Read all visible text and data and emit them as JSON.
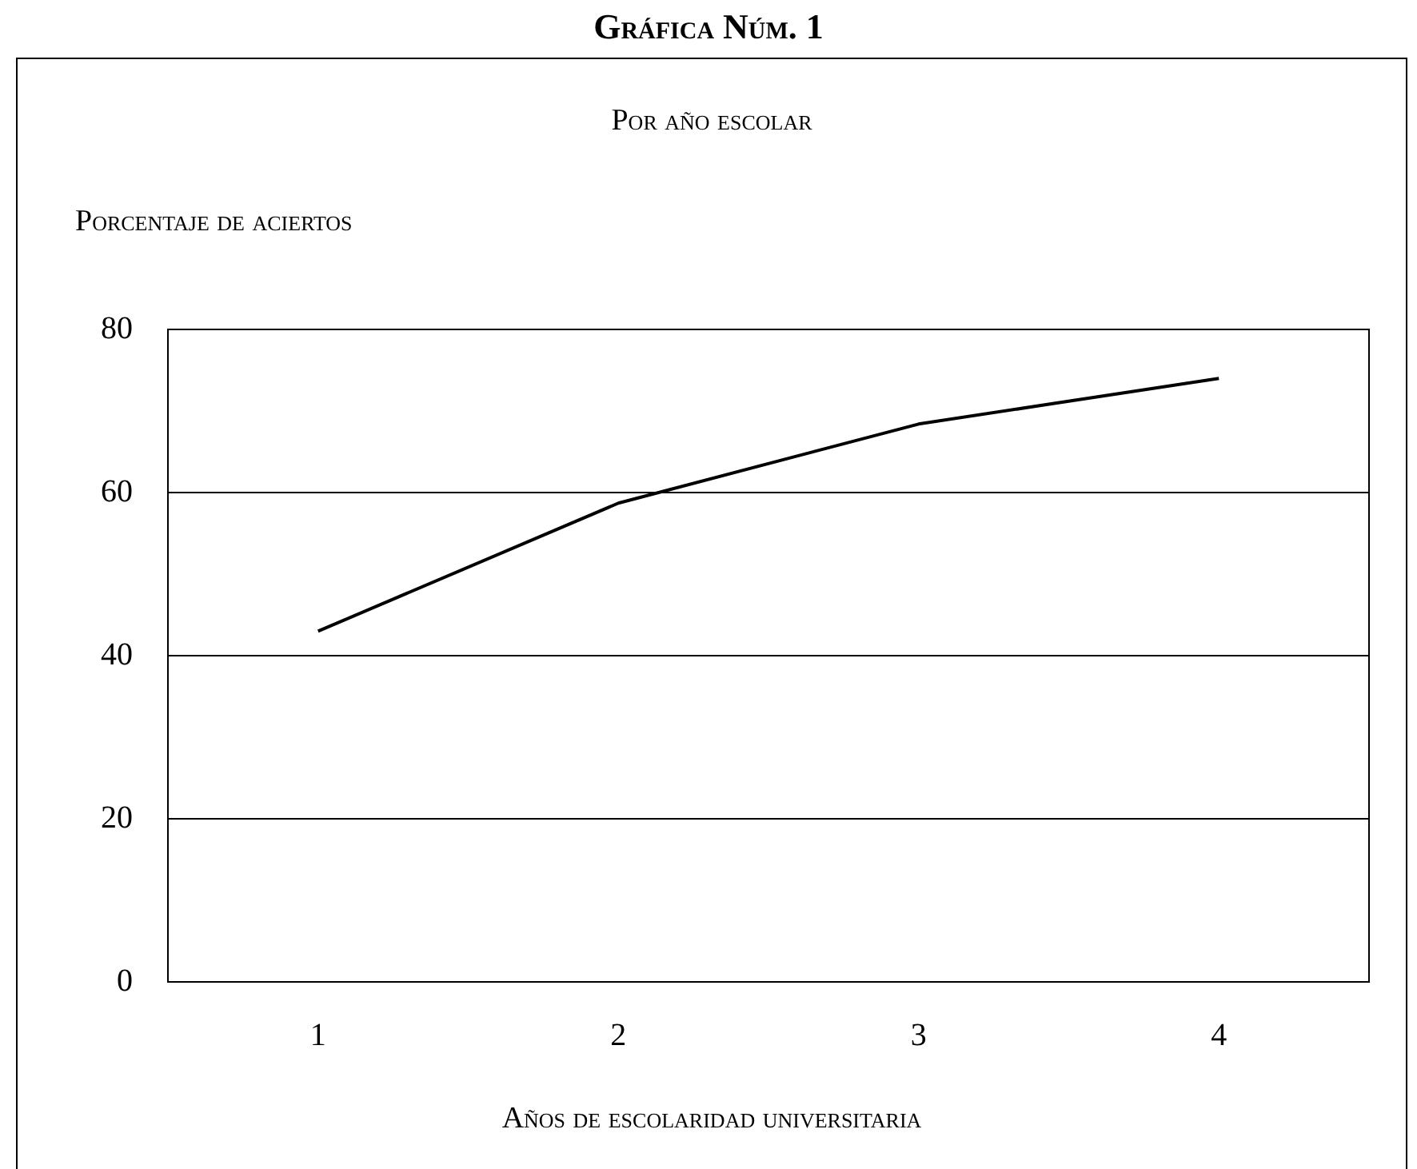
{
  "chart_data": {
    "type": "line",
    "title": "Gráfica Núm. 1",
    "subtitle": "Por año escolar",
    "ylabel": "Porcentaje de aciertos",
    "xlabel": "Años de escolaridad universitaria",
    "categories": [
      "1",
      "2",
      "3",
      "4"
    ],
    "series": [
      {
        "color": "#000000",
        "values": [
          43,
          58.7,
          68.4,
          74
        ]
      }
    ],
    "ylim": [
      0,
      80
    ],
    "yticks": [
      0,
      20,
      40,
      60,
      80
    ],
    "grid": "y",
    "legend": false,
    "marker": "none",
    "line_style": "solid"
  }
}
